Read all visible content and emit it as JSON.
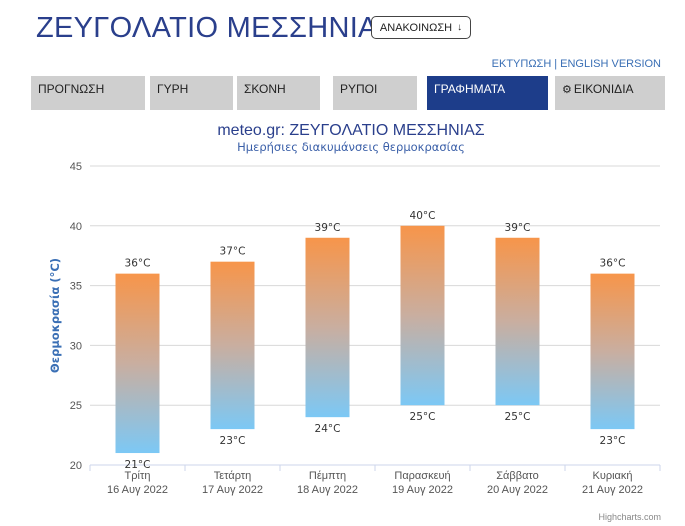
{
  "header": {
    "title": "ΖΕΥΓΟΛΑΤΙΟ ΜΕΣΣΗΝΙΑΣ",
    "announce_label": "ΑΝΑΚΟΙΝΩΣΗ",
    "announce_icon": "arrow-down-icon"
  },
  "links": {
    "print": "ΕΚΤΥΠΩΣΗ",
    "separator": "|",
    "english": "ENGLISH VERSION"
  },
  "nav": {
    "tabs": [
      {
        "label": "ΠΡΟΓΝΩΣΗ",
        "active": false
      },
      {
        "label": "ΓΥΡΗ",
        "active": false
      },
      {
        "label": "ΣΚΟΝΗ",
        "active": false
      },
      {
        "label": "ΡΥΠΟΙ",
        "active": false
      },
      {
        "label": "ΓΡΑΦΗΜΑΤΑ",
        "active": true
      },
      {
        "label": "ΕΙΚΟΝΙΔΙΑ",
        "active": false,
        "icon": "gear-icon"
      }
    ]
  },
  "chart_data": {
    "type": "columnrange",
    "title": "meteo.gr: ΖΕΥΓΟΛΑΤΙΟ ΜΕΣΣΗΝΙΑΣ",
    "subtitle": "Ημερήσιες διακυμάνσεις θερμοκρασίας",
    "ylabel": "Θερμοκρασία (°C)",
    "ylim": [
      20,
      45
    ],
    "yticks": [
      20,
      25,
      30,
      35,
      40,
      45
    ],
    "unit": "°C",
    "categories": [
      {
        "day": "Τρίτη",
        "date": "16 Αυγ 2022"
      },
      {
        "day": "Τετάρτη",
        "date": "17 Αυγ 2022"
      },
      {
        "day": "Πέμπτη",
        "date": "18 Αυγ 2022"
      },
      {
        "day": "Παρασκευή",
        "date": "19 Αυγ 2022"
      },
      {
        "day": "Σάββατο",
        "date": "20 Αυγ 2022"
      },
      {
        "day": "Κυριακή",
        "date": "21 Αυγ 2022"
      }
    ],
    "low": [
      21,
      23,
      24,
      25,
      25,
      23
    ],
    "high": [
      36,
      37,
      39,
      40,
      39,
      36
    ],
    "grid": true,
    "colors": {
      "high": "#f7954a",
      "low": "#7cc8f5",
      "title": "#2a3f8c",
      "subtitle": "#3a5fa8",
      "axis_title": "#3a6fb5"
    }
  },
  "credits": "Highcharts.com"
}
